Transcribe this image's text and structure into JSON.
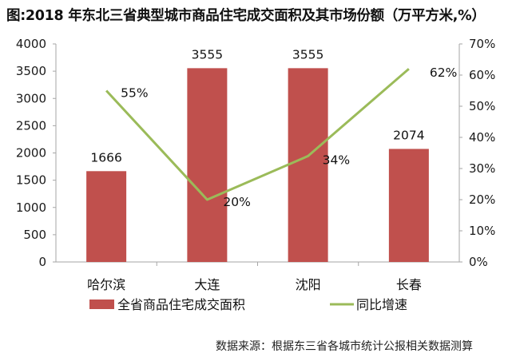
{
  "title": "图:2018 年东北三省典型城市商品住宅成交面积及其市场份额（万平方米,%）",
  "source": "数据来源：根据东三省各城市统计公报相关数据测算",
  "colors": {
    "bar": "#C0504D",
    "line": "#9BBB59",
    "axis": "#A6A6A6"
  },
  "chart_data": {
    "type": "bar+line",
    "title": "图:2018 年东北三省典型城市商品住宅成交面积及其市场份额（万平方米,%）",
    "categories": [
      "哈尔滨",
      "大连",
      "沈阳",
      "长春"
    ],
    "series": [
      {
        "name": "全省商品住宅成交面积",
        "type": "bar",
        "axis": "left",
        "values": [
          1666,
          3555,
          3555,
          2074
        ],
        "labels": [
          "1666",
          "3555",
          "3555",
          "2074"
        ]
      },
      {
        "name": "同比增速",
        "type": "line",
        "axis": "right",
        "values": [
          55,
          20,
          34,
          62
        ],
        "labels": [
          "55%",
          "20%",
          "34%",
          "62%"
        ]
      }
    ],
    "y_left": {
      "ylim": [
        0,
        4000
      ],
      "ticks": [
        "0",
        "500",
        "1000",
        "1500",
        "2000",
        "2500",
        "3000",
        "3500",
        "4000"
      ]
    },
    "y_right": {
      "ylim": [
        0,
        70
      ],
      "ticks": [
        "0%",
        "10%",
        "20%",
        "30%",
        "40%",
        "50%",
        "60%",
        "70%"
      ]
    },
    "legend": [
      "全省商品住宅成交面积",
      "同比增速"
    ],
    "legend_position": "bottom",
    "grid": false
  }
}
